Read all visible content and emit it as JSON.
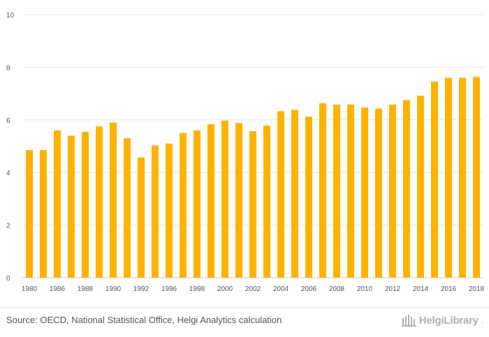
{
  "chart_data": {
    "type": "bar",
    "title": "",
    "xlabel": "",
    "ylabel": "",
    "ylim": [
      0,
      10
    ],
    "yticks": [
      0,
      2,
      4,
      6,
      8,
      10
    ],
    "grid": true,
    "bar_color": "#FFB300",
    "grid_color": "#E6E6E6",
    "categories": [
      "1980",
      "1981",
      "1986",
      "1987",
      "1988",
      "1989",
      "1990",
      "1991",
      "1992",
      "1993",
      "1996",
      "1997",
      "1998",
      "1999",
      "2000",
      "2001",
      "2002",
      "2003",
      "2004",
      "2005",
      "2006",
      "2007",
      "2008",
      "2009",
      "2010",
      "2011",
      "2012",
      "2013",
      "2014",
      "2015",
      "2016",
      "2017",
      "2018"
    ],
    "tick_labels": [
      "1980",
      "",
      "1986",
      "",
      "1988",
      "",
      "1990",
      "",
      "1992",
      "",
      "1996",
      "",
      "1998",
      "",
      "2000",
      "",
      "2002",
      "",
      "2004",
      "",
      "2006",
      "",
      "2008",
      "",
      "2010",
      "",
      "2012",
      "",
      "2014",
      "",
      "2016",
      "",
      "2018"
    ],
    "values": [
      4.85,
      4.85,
      5.6,
      5.4,
      5.55,
      5.75,
      5.9,
      5.3,
      4.57,
      5.03,
      5.1,
      5.5,
      5.6,
      5.83,
      5.97,
      5.88,
      5.57,
      5.78,
      6.33,
      6.38,
      6.12,
      6.63,
      6.58,
      6.58,
      6.47,
      6.43,
      6.58,
      6.75,
      6.92,
      7.45,
      7.6,
      7.6,
      7.63
    ]
  },
  "footer": {
    "source": "Source: OECD, National Statistical Office, Helgi Analytics calculation",
    "brand": "HelgiLibrary",
    "brand_suffix": "."
  }
}
